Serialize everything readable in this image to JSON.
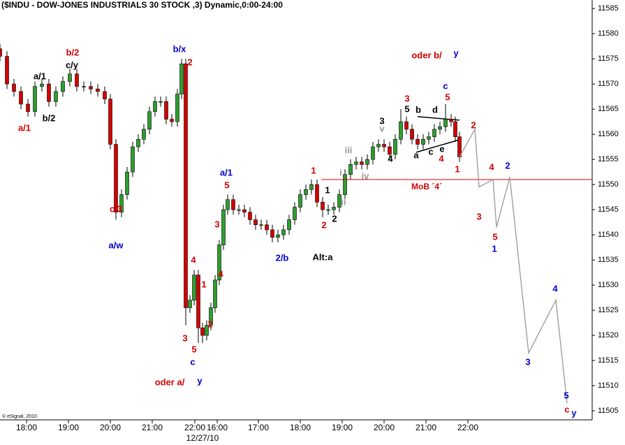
{
  "chart_data": {
    "type": "candlestick",
    "title": "($INDU - DOW-JONES INDUSTRIALS 30 STOCK ,3) Dynamic,0:00-24:00",
    "credit": "© eSignal, 2010",
    "date_label": "12/27/10",
    "xlim": [
      0,
      848
    ],
    "xticks": [
      {
        "value": 38,
        "label": "18:00"
      },
      {
        "value": 98,
        "label": "19:00"
      },
      {
        "value": 158,
        "label": "20:00"
      },
      {
        "value": 218,
        "label": "21:00"
      },
      {
        "value": 279,
        "label": "22:00"
      },
      {
        "value": 311,
        "label": "16:00"
      },
      {
        "value": 370,
        "label": "17:00"
      },
      {
        "value": 430,
        "label": "18:00"
      },
      {
        "value": 490,
        "label": "19:00"
      },
      {
        "value": 550,
        "label": "20:00"
      },
      {
        "value": 610,
        "label": "21:00"
      },
      {
        "value": 670,
        "label": "22:00"
      }
    ],
    "ylim": [
      11503.2,
      11586.7
    ],
    "yticks": [
      11505,
      11510,
      11515,
      11520,
      11525,
      11530,
      11535,
      11540,
      11545,
      11550,
      11555,
      11560,
      11565,
      11570,
      11575,
      11580,
      11585
    ],
    "up_color": "#2e9e2e",
    "down_color": "#d40000",
    "x": [
      0,
      10,
      20,
      30,
      40,
      50,
      60,
      70,
      80,
      90,
      100,
      110,
      120,
      130,
      140,
      150,
      158,
      166,
      174,
      182,
      190,
      198,
      206,
      214,
      222,
      230,
      238,
      246,
      254,
      260,
      266,
      272,
      278,
      284,
      290,
      296,
      302,
      308,
      314,
      320,
      326,
      334,
      342,
      350,
      358,
      366,
      374,
      382,
      390,
      398,
      406,
      414,
      422,
      430,
      438,
      446,
      454,
      462,
      470,
      478,
      486,
      494,
      502,
      510,
      518,
      526,
      534,
      542,
      550,
      558,
      566,
      574,
      582,
      590,
      598,
      606,
      614,
      622,
      630,
      638,
      646,
      652,
      658
    ],
    "open": [
      11577,
      11575.5,
      11570,
      11568.5,
      11566,
      11564.5,
      11569.5,
      11570,
      11566.5,
      11568.5,
      11570.5,
      11572,
      11569.5,
      11569.5,
      11569,
      11568.5,
      11567,
      11558,
      11544.5,
      11548,
      11552.5,
      11557.5,
      11559,
      11561,
      11564.5,
      11566.5,
      11566.5,
      11563,
      11562.5,
      11568,
      11574,
      11525.5,
      11527,
      11532,
      11521.5,
      11520,
      11522,
      11525.5,
      11531,
      11538,
      11545,
      11547,
      11545,
      11545,
      11544.5,
      11543,
      11542,
      11542,
      11541,
      11539.5,
      11540,
      11541,
      11543,
      11545.5,
      11548,
      11549,
      11550,
      11546.5,
      11545,
      11545,
      11545.5,
      11548,
      11552,
      11554,
      11554.5,
      11554,
      11555,
      11557.5,
      11558,
      11557.5,
      11556,
      11559,
      11562.5,
      11561,
      11559,
      11558,
      11559,
      11559.5,
      11561,
      11561.5,
      11563,
      11562.5,
      11559.5
    ],
    "high": [
      11578,
      11576.5,
      11571,
      11569.5,
      11567,
      11570.5,
      11571,
      11571,
      11569.5,
      11571.5,
      11573,
      11573,
      11570.5,
      11570.5,
      11570,
      11569.5,
      11568,
      11559,
      11549,
      11553.5,
      11558.5,
      11560,
      11562,
      11565.5,
      11567.5,
      11567.5,
      11567.5,
      11564,
      11569,
      11575,
      11575,
      11528,
      11533,
      11533,
      11522.5,
      11523,
      11526.5,
      11532,
      11539,
      11546,
      11548,
      11548,
      11546,
      11546,
      11545.5,
      11544,
      11543,
      11543,
      11542,
      11541,
      11542,
      11544,
      11546.5,
      11549,
      11550,
      11551,
      11551,
      11547.5,
      11546,
      11546.5,
      11549,
      11553,
      11555,
      11555.5,
      11555.5,
      11556,
      11558.5,
      11559,
      11559,
      11558.5,
      11560,
      11565,
      11563.5,
      11562,
      11560,
      11560,
      11560.5,
      11562,
      11562.5,
      11566,
      11564,
      11563.5,
      11560.5
    ],
    "low": [
      11574.5,
      11569,
      11567.5,
      11565,
      11563.5,
      11563.5,
      11568.5,
      11565.5,
      11565.5,
      11567.5,
      11569.5,
      11568.5,
      11568.5,
      11568,
      11567.5,
      11566,
      11557,
      11543,
      11543.5,
      11547,
      11551.5,
      11556.5,
      11558,
      11560,
      11563.5,
      11565.5,
      11562,
      11561.5,
      11561.5,
      11567,
      11522,
      11524.5,
      11526,
      11518.5,
      11518.5,
      11519,
      11521,
      11524.5,
      11530,
      11537,
      11544,
      11544,
      11544,
      11543.5,
      11542,
      11541,
      11541,
      11540,
      11538.5,
      11538.5,
      11539,
      11540,
      11542,
      11544.5,
      11547,
      11548,
      11545.5,
      11543.5,
      11544,
      11544,
      11544.5,
      11547,
      11551,
      11553,
      11553,
      11553,
      11554,
      11556.5,
      11556.5,
      11555,
      11555,
      11558,
      11560,
      11558,
      11557,
      11557,
      11558,
      11558.5,
      11560,
      11560.5,
      11561.5,
      11558.5,
      11554.5
    ],
    "close": [
      11575.5,
      11570,
      11568.5,
      11566,
      11564.5,
      11569.5,
      11570,
      11566.5,
      11568.5,
      11570.5,
      11572,
      11569.5,
      11569.5,
      11569,
      11568.5,
      11567,
      11558,
      11544.5,
      11548,
      11552.5,
      11557.5,
      11559,
      11561,
      11564.5,
      11566.5,
      11566.5,
      11563,
      11562.5,
      11568,
      11574,
      11525.5,
      11527,
      11532,
      11521.5,
      11520,
      11522,
      11525.5,
      11531,
      11538,
      11545,
      11547,
      11545,
      11545,
      11544.5,
      11543,
      11542,
      11542,
      11541,
      11539.5,
      11540,
      11541,
      11543,
      11545.5,
      11548,
      11549,
      11550,
      11546.5,
      11545,
      11545,
      11545.5,
      11548,
      11552,
      11554,
      11554.5,
      11554,
      11555,
      11557.5,
      11558,
      11557.5,
      11556,
      11559,
      11562.5,
      11561,
      11559,
      11558,
      11559,
      11559.5,
      11561,
      11561.5,
      11563,
      11562.5,
      11559.5,
      11555.5
    ],
    "projection": {
      "color": "#999999",
      "x": [
        658,
        680,
        686,
        706,
        711,
        730,
        757,
        796,
        812
      ],
      "values": [
        11555.5,
        11561,
        11549.5,
        11551,
        11541.5,
        11551.5,
        11516.5,
        11527,
        11506.5
      ]
    },
    "level_line": {
      "value": 11551,
      "x_start": 460,
      "color": "#d40000",
      "label": "MoB ´4´"
    },
    "annotations": [
      {
        "text": "a/1",
        "color": "#d40000"
      },
      {
        "text": "a/1",
        "color": "#000000"
      },
      {
        "text": "b/2",
        "color": "#000000"
      },
      {
        "text": "b/2",
        "color": "#d40000"
      },
      {
        "text": "c/y",
        "color": "#000000"
      },
      {
        "text": "c/3",
        "color": "#d40000"
      },
      {
        "text": "a/w",
        "color": "#0000cc"
      },
      {
        "text": "b/x",
        "color": "#0000cc"
      },
      {
        "text": "2",
        "color": "#d40000"
      },
      {
        "text": "a/1",
        "color": "#0000cc"
      },
      {
        "text": "5",
        "color": "#d40000"
      },
      {
        "text": "3",
        "color": "#d40000"
      },
      {
        "text": "4",
        "color": "#d40000"
      },
      {
        "text": "4",
        "color": "#d40000"
      },
      {
        "text": "1",
        "color": "#d40000"
      },
      {
        "text": "2",
        "color": "#d40000"
      },
      {
        "text": "3",
        "color": "#d40000"
      },
      {
        "text": "5",
        "color": "#d40000"
      },
      {
        "text": "c",
        "color": "#0000cc"
      },
      {
        "text": "oder a/",
        "color": "#d40000"
      },
      {
        "text": "y",
        "color": "#0000cc"
      },
      {
        "text": "2/b",
        "color": "#0000cc"
      },
      {
        "text": "1",
        "color": "#d40000"
      },
      {
        "text": "1",
        "color": "#000000"
      },
      {
        "text": "2",
        "color": "#000000"
      },
      {
        "text": "2",
        "color": "#d40000"
      },
      {
        "text": "Alt:a",
        "color": "#000000"
      },
      {
        "text": "i",
        "color": "#999999"
      },
      {
        "text": "ii",
        "color": "#999999"
      },
      {
        "text": "iii",
        "color": "#999999"
      },
      {
        "text": "iv",
        "color": "#999999"
      },
      {
        "text": "v",
        "color": "#999999"
      },
      {
        "text": "3",
        "color": "#000000"
      },
      {
        "text": "4",
        "color": "#000000"
      },
      {
        "text": "3",
        "color": "#d40000"
      },
      {
        "text": "5",
        "color": "#000000"
      },
      {
        "text": "b",
        "color": "#000000"
      },
      {
        "text": "d",
        "color": "#000000"
      },
      {
        "text": "a",
        "color": "#000000"
      },
      {
        "text": "c",
        "color": "#000000"
      },
      {
        "text": "e",
        "color": "#000000"
      },
      {
        "text": "4",
        "color": "#d40000"
      },
      {
        "text": "5",
        "color": "#d40000"
      },
      {
        "text": "c",
        "color": "#0000cc"
      },
      {
        "text": "1",
        "color": "#d40000"
      },
      {
        "text": "oder b/",
        "color": "#d40000"
      },
      {
        "text": "y",
        "color": "#0000cc"
      },
      {
        "text": "2",
        "color": "#d40000"
      },
      {
        "text": "4",
        "color": "#d40000"
      },
      {
        "text": "2",
        "color": "#0000cc"
      },
      {
        "text": "3",
        "color": "#d40000"
      },
      {
        "text": "5",
        "color": "#d40000"
      },
      {
        "text": "1",
        "color": "#0000cc"
      },
      {
        "text": "3",
        "color": "#0000cc"
      },
      {
        "text": "4",
        "color": "#0000cc"
      },
      {
        "text": "5",
        "color": "#0000cc"
      },
      {
        "text": "c",
        "color": "#d40000"
      },
      {
        "text": "y",
        "color": "#0000cc"
      }
    ]
  }
}
